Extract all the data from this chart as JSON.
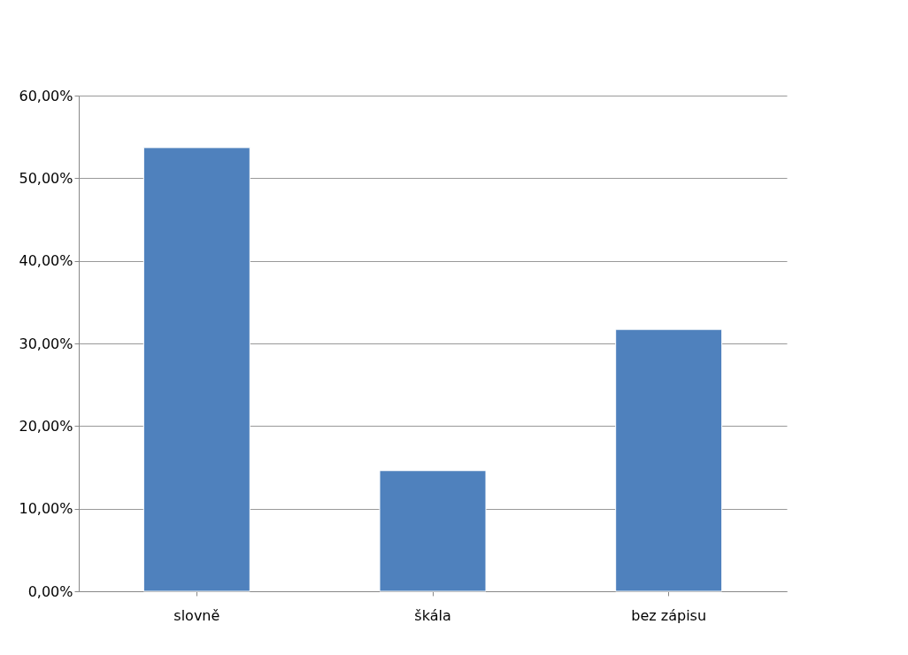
{
  "chart_data": {
    "type": "bar",
    "categories": [
      "slovně",
      "škála",
      "bez zápisu"
    ],
    "values": [
      53.7,
      14.6,
      31.7
    ],
    "color": "#4f81bd",
    "ylim": [
      0,
      60
    ],
    "yticks": [
      {
        "value": 0,
        "label": "0,00%"
      },
      {
        "value": 10,
        "label": "10,00%"
      },
      {
        "value": 20,
        "label": "20,00%"
      },
      {
        "value": 30,
        "label": "30,00%"
      },
      {
        "value": 40,
        "label": "40,00%"
      },
      {
        "value": 50,
        "label": "50,00%"
      },
      {
        "value": 60,
        "label": "60,00%"
      }
    ],
    "grid": "y"
  }
}
